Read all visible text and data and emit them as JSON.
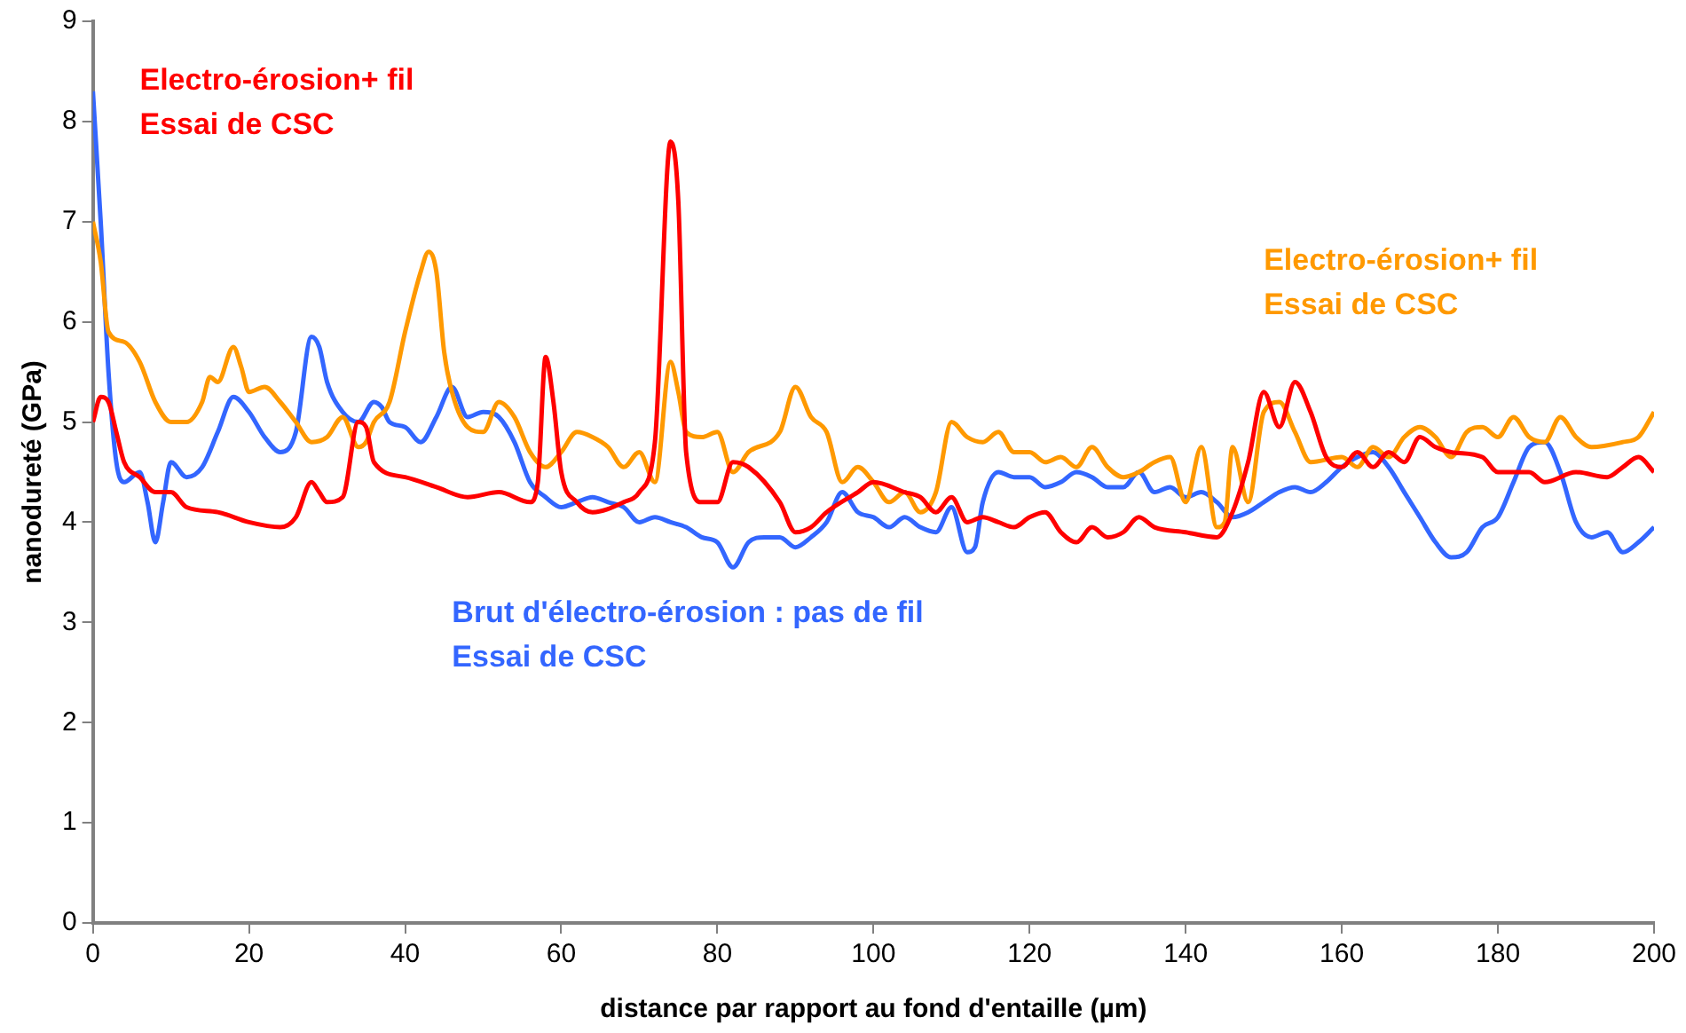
{
  "chart_data": {
    "type": "line",
    "xlabel": "distance par rapport au fond d'entaille (µm)",
    "ylabel": "nanodureté (GPa)",
    "xlim": [
      0,
      200
    ],
    "xticks": [
      0,
      20,
      40,
      60,
      80,
      100,
      120,
      140,
      160,
      180,
      200
    ],
    "ylim": [
      0,
      9
    ],
    "yticks": [
      0,
      1,
      2,
      3,
      4,
      5,
      6,
      7,
      8,
      9
    ],
    "grid": false,
    "legend": false,
    "marker": "none",
    "line_style": "solid",
    "series": [
      {
        "name": "Electro-érosion+ fil\nEssai de CSC",
        "color": "#ff0000",
        "x": [
          0,
          1,
          2,
          3,
          4,
          6,
          8,
          10,
          12,
          16,
          20,
          24,
          26,
          28,
          29,
          30,
          32,
          34,
          35,
          36,
          40,
          44,
          48,
          52,
          56,
          57,
          58,
          59,
          60,
          62,
          64,
          68,
          70,
          72,
          74,
          75,
          76,
          78,
          80,
          82,
          84,
          88,
          90,
          92,
          94,
          98,
          100,
          104,
          106,
          108,
          110,
          112,
          114,
          116,
          118,
          120,
          122,
          124,
          126,
          128,
          130,
          132,
          134,
          136,
          140,
          144,
          146,
          148,
          150,
          152,
          154,
          156,
          158,
          160,
          162,
          164,
          166,
          168,
          170,
          172,
          174,
          178,
          180,
          184,
          186,
          190,
          194,
          196,
          198,
          200
        ],
        "values": [
          5.0,
          5.25,
          5.2,
          4.9,
          4.6,
          4.45,
          4.3,
          4.3,
          4.15,
          4.1,
          4.0,
          3.95,
          4.05,
          4.4,
          4.3,
          4.2,
          4.25,
          5.0,
          4.95,
          4.6,
          4.45,
          4.35,
          4.25,
          4.3,
          4.2,
          4.4,
          5.65,
          5.2,
          4.5,
          4.2,
          4.1,
          4.2,
          4.3,
          4.8,
          7.8,
          7.2,
          4.7,
          4.2,
          4.2,
          4.6,
          4.55,
          4.2,
          3.9,
          3.95,
          4.1,
          4.3,
          4.4,
          4.3,
          4.25,
          4.1,
          4.25,
          4.0,
          4.05,
          4.0,
          3.95,
          4.05,
          4.1,
          3.9,
          3.8,
          3.95,
          3.85,
          3.9,
          4.05,
          3.95,
          3.9,
          3.85,
          4.1,
          4.6,
          5.3,
          4.95,
          5.4,
          5.1,
          4.65,
          4.55,
          4.7,
          4.55,
          4.7,
          4.6,
          4.85,
          4.75,
          4.7,
          4.65,
          4.5,
          4.5,
          4.4,
          4.5,
          4.45,
          4.55,
          4.65,
          4.5
        ]
      },
      {
        "name": "Electro-érosion+ fil\nEssai de CSC",
        "color": "#ff9900",
        "x": [
          0,
          1,
          2,
          4,
          6,
          8,
          10,
          12,
          14,
          15,
          16,
          18,
          19,
          20,
          22,
          24,
          26,
          28,
          30,
          32,
          34,
          35,
          36,
          38,
          40,
          42,
          43,
          44,
          45,
          46,
          48,
          50,
          52,
          54,
          56,
          58,
          60,
          62,
          64,
          66,
          68,
          70,
          72,
          74,
          75,
          76,
          78,
          80,
          82,
          84,
          88,
          90,
          92,
          94,
          96,
          98,
          100,
          102,
          104,
          106,
          108,
          110,
          112,
          114,
          116,
          118,
          120,
          122,
          124,
          126,
          128,
          130,
          132,
          134,
          136,
          138,
          140,
          142,
          144,
          145,
          146,
          148,
          150,
          152,
          154,
          156,
          160,
          162,
          164,
          166,
          168,
          170,
          172,
          174,
          176,
          178,
          180,
          182,
          184,
          186,
          188,
          190,
          192,
          196,
          198,
          200
        ],
        "values": [
          7.0,
          6.6,
          5.9,
          5.8,
          5.6,
          5.2,
          5.0,
          5.0,
          5.2,
          5.45,
          5.4,
          5.75,
          5.55,
          5.3,
          5.35,
          5.2,
          5.0,
          4.8,
          4.85,
          5.05,
          4.75,
          4.8,
          5.0,
          5.2,
          5.9,
          6.5,
          6.7,
          6.5,
          5.7,
          5.3,
          4.95,
          4.9,
          5.2,
          5.05,
          4.7,
          4.55,
          4.7,
          4.9,
          4.85,
          4.75,
          4.55,
          4.7,
          4.4,
          5.6,
          5.3,
          4.9,
          4.85,
          4.9,
          4.5,
          4.7,
          4.9,
          5.35,
          5.05,
          4.9,
          4.4,
          4.55,
          4.4,
          4.2,
          4.3,
          4.1,
          4.3,
          5.0,
          4.85,
          4.8,
          4.9,
          4.7,
          4.7,
          4.6,
          4.65,
          4.55,
          4.75,
          4.55,
          4.45,
          4.5,
          4.6,
          4.65,
          4.2,
          4.75,
          3.95,
          4.0,
          4.75,
          4.2,
          5.1,
          5.2,
          4.9,
          4.6,
          4.65,
          4.55,
          4.75,
          4.65,
          4.85,
          4.95,
          4.85,
          4.65,
          4.9,
          4.95,
          4.85,
          5.05,
          4.85,
          4.8,
          5.05,
          4.85,
          4.75,
          4.8,
          4.85,
          5.1
        ]
      },
      {
        "name": "Brut d'électro-érosion : pas de fil\nEssai de CSC",
        "color": "#3366ff",
        "x": [
          0,
          1,
          2,
          3,
          4,
          6,
          7,
          8,
          9,
          10,
          12,
          14,
          16,
          18,
          20,
          22,
          24,
          26,
          28,
          29,
          30,
          32,
          34,
          36,
          37,
          38,
          40,
          42,
          44,
          46,
          48,
          50,
          52,
          54,
          56,
          58,
          60,
          62,
          64,
          66,
          68,
          70,
          72,
          74,
          76,
          78,
          80,
          82,
          84,
          86,
          88,
          90,
          92,
          94,
          96,
          98,
          100,
          102,
          104,
          106,
          108,
          110,
          112,
          113,
          114,
          116,
          118,
          120,
          122,
          124,
          126,
          128,
          130,
          132,
          134,
          136,
          138,
          140,
          142,
          144,
          146,
          148,
          150,
          152,
          154,
          156,
          158,
          160,
          162,
          164,
          166,
          168,
          170,
          172,
          174,
          176,
          178,
          180,
          182,
          184,
          186,
          188,
          190,
          192,
          194,
          196,
          198,
          200
        ],
        "values": [
          8.3,
          7.0,
          5.5,
          4.6,
          4.4,
          4.5,
          4.2,
          3.8,
          4.2,
          4.6,
          4.45,
          4.55,
          4.9,
          5.25,
          5.1,
          4.85,
          4.7,
          4.9,
          5.85,
          5.75,
          5.4,
          5.1,
          5.0,
          5.2,
          5.15,
          5.0,
          4.95,
          4.8,
          5.05,
          5.35,
          5.05,
          5.1,
          5.05,
          4.8,
          4.4,
          4.25,
          4.15,
          4.2,
          4.25,
          4.2,
          4.15,
          4.0,
          4.05,
          4.0,
          3.95,
          3.85,
          3.8,
          3.55,
          3.8,
          3.85,
          3.85,
          3.75,
          3.85,
          4.0,
          4.3,
          4.1,
          4.05,
          3.95,
          4.05,
          3.95,
          3.9,
          4.15,
          3.7,
          3.75,
          4.2,
          4.5,
          4.45,
          4.45,
          4.35,
          4.4,
          4.5,
          4.45,
          4.35,
          4.35,
          4.5,
          4.3,
          4.35,
          4.25,
          4.3,
          4.2,
          4.05,
          4.1,
          4.2,
          4.3,
          4.35,
          4.3,
          4.4,
          4.55,
          4.65,
          4.7,
          4.55,
          4.3,
          4.05,
          3.8,
          3.65,
          3.7,
          3.95,
          4.05,
          4.4,
          4.75,
          4.8,
          4.5,
          4.0,
          3.85,
          3.9,
          3.7,
          3.8,
          3.95
        ]
      }
    ]
  }
}
